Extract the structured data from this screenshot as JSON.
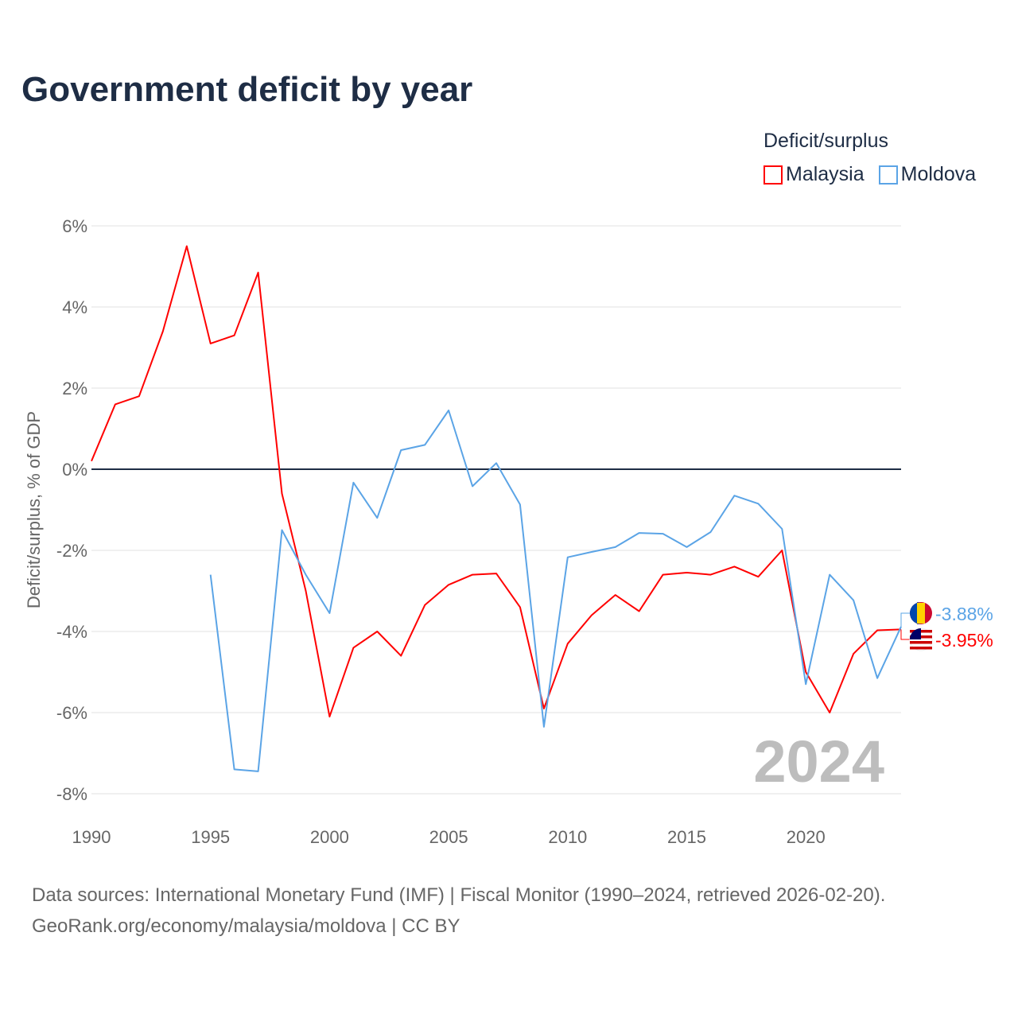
{
  "title": "Government deficit by year",
  "legend": {
    "title": "Deficit/surplus",
    "items": [
      {
        "label": "Malaysia",
        "color": "#ff0000"
      },
      {
        "label": "Moldova",
        "color": "#5ba4e6"
      }
    ]
  },
  "source": {
    "line1": "Data sources: International Monetary Fund (IMF) | Fiscal Monitor (1990–2024, retrieved 2026-02-20).",
    "line2": "GeoRank.org/economy/malaysia/moldova | CC BY"
  },
  "chart_data": {
    "type": "line",
    "title": "Government deficit by year",
    "xlabel": "",
    "ylabel": "Deficit/surplus, % of GDP",
    "xlim": [
      1990,
      2024
    ],
    "ylim": [
      -8,
      6
    ],
    "x_ticks": [
      "1990",
      "1995",
      "2000",
      "2005",
      "2010",
      "2015",
      "2020"
    ],
    "y_ticks": [
      "6%",
      "4%",
      "2%",
      "0%",
      "-2%",
      "-4%",
      "-6%",
      "-8%"
    ],
    "year_label": "2024",
    "series": [
      {
        "name": "Malaysia",
        "color": "#ff0000",
        "end_label": "-3.95%",
        "start_year": 1990,
        "values": [
          0.2,
          1.6,
          1.8,
          3.4,
          5.5,
          3.1,
          3.3,
          4.85,
          -0.6,
          -3.0,
          -6.1,
          -4.4,
          -4.0,
          -4.6,
          -3.35,
          -2.85,
          -2.6,
          -2.57,
          -3.4,
          -5.9,
          -4.3,
          -3.6,
          -3.1,
          -3.5,
          -2.6,
          -2.55,
          -2.6,
          -2.4,
          -2.65,
          -2.0,
          -5.0,
          -6.0,
          -4.55,
          -3.97,
          -3.95
        ]
      },
      {
        "name": "Moldova",
        "color": "#5ba4e6",
        "end_label": "-3.88%",
        "start_year": 1995,
        "values": [
          -2.6,
          -7.4,
          -7.45,
          -1.5,
          -2.6,
          -3.55,
          -0.33,
          -1.2,
          0.47,
          0.6,
          1.45,
          -0.42,
          0.15,
          -0.87,
          -6.35,
          -2.17,
          -2.04,
          -1.92,
          -1.57,
          -1.59,
          -1.92,
          -1.55,
          -0.65,
          -0.85,
          -1.47,
          -5.3,
          -2.6,
          -3.23,
          -5.15,
          -3.88
        ]
      }
    ]
  }
}
